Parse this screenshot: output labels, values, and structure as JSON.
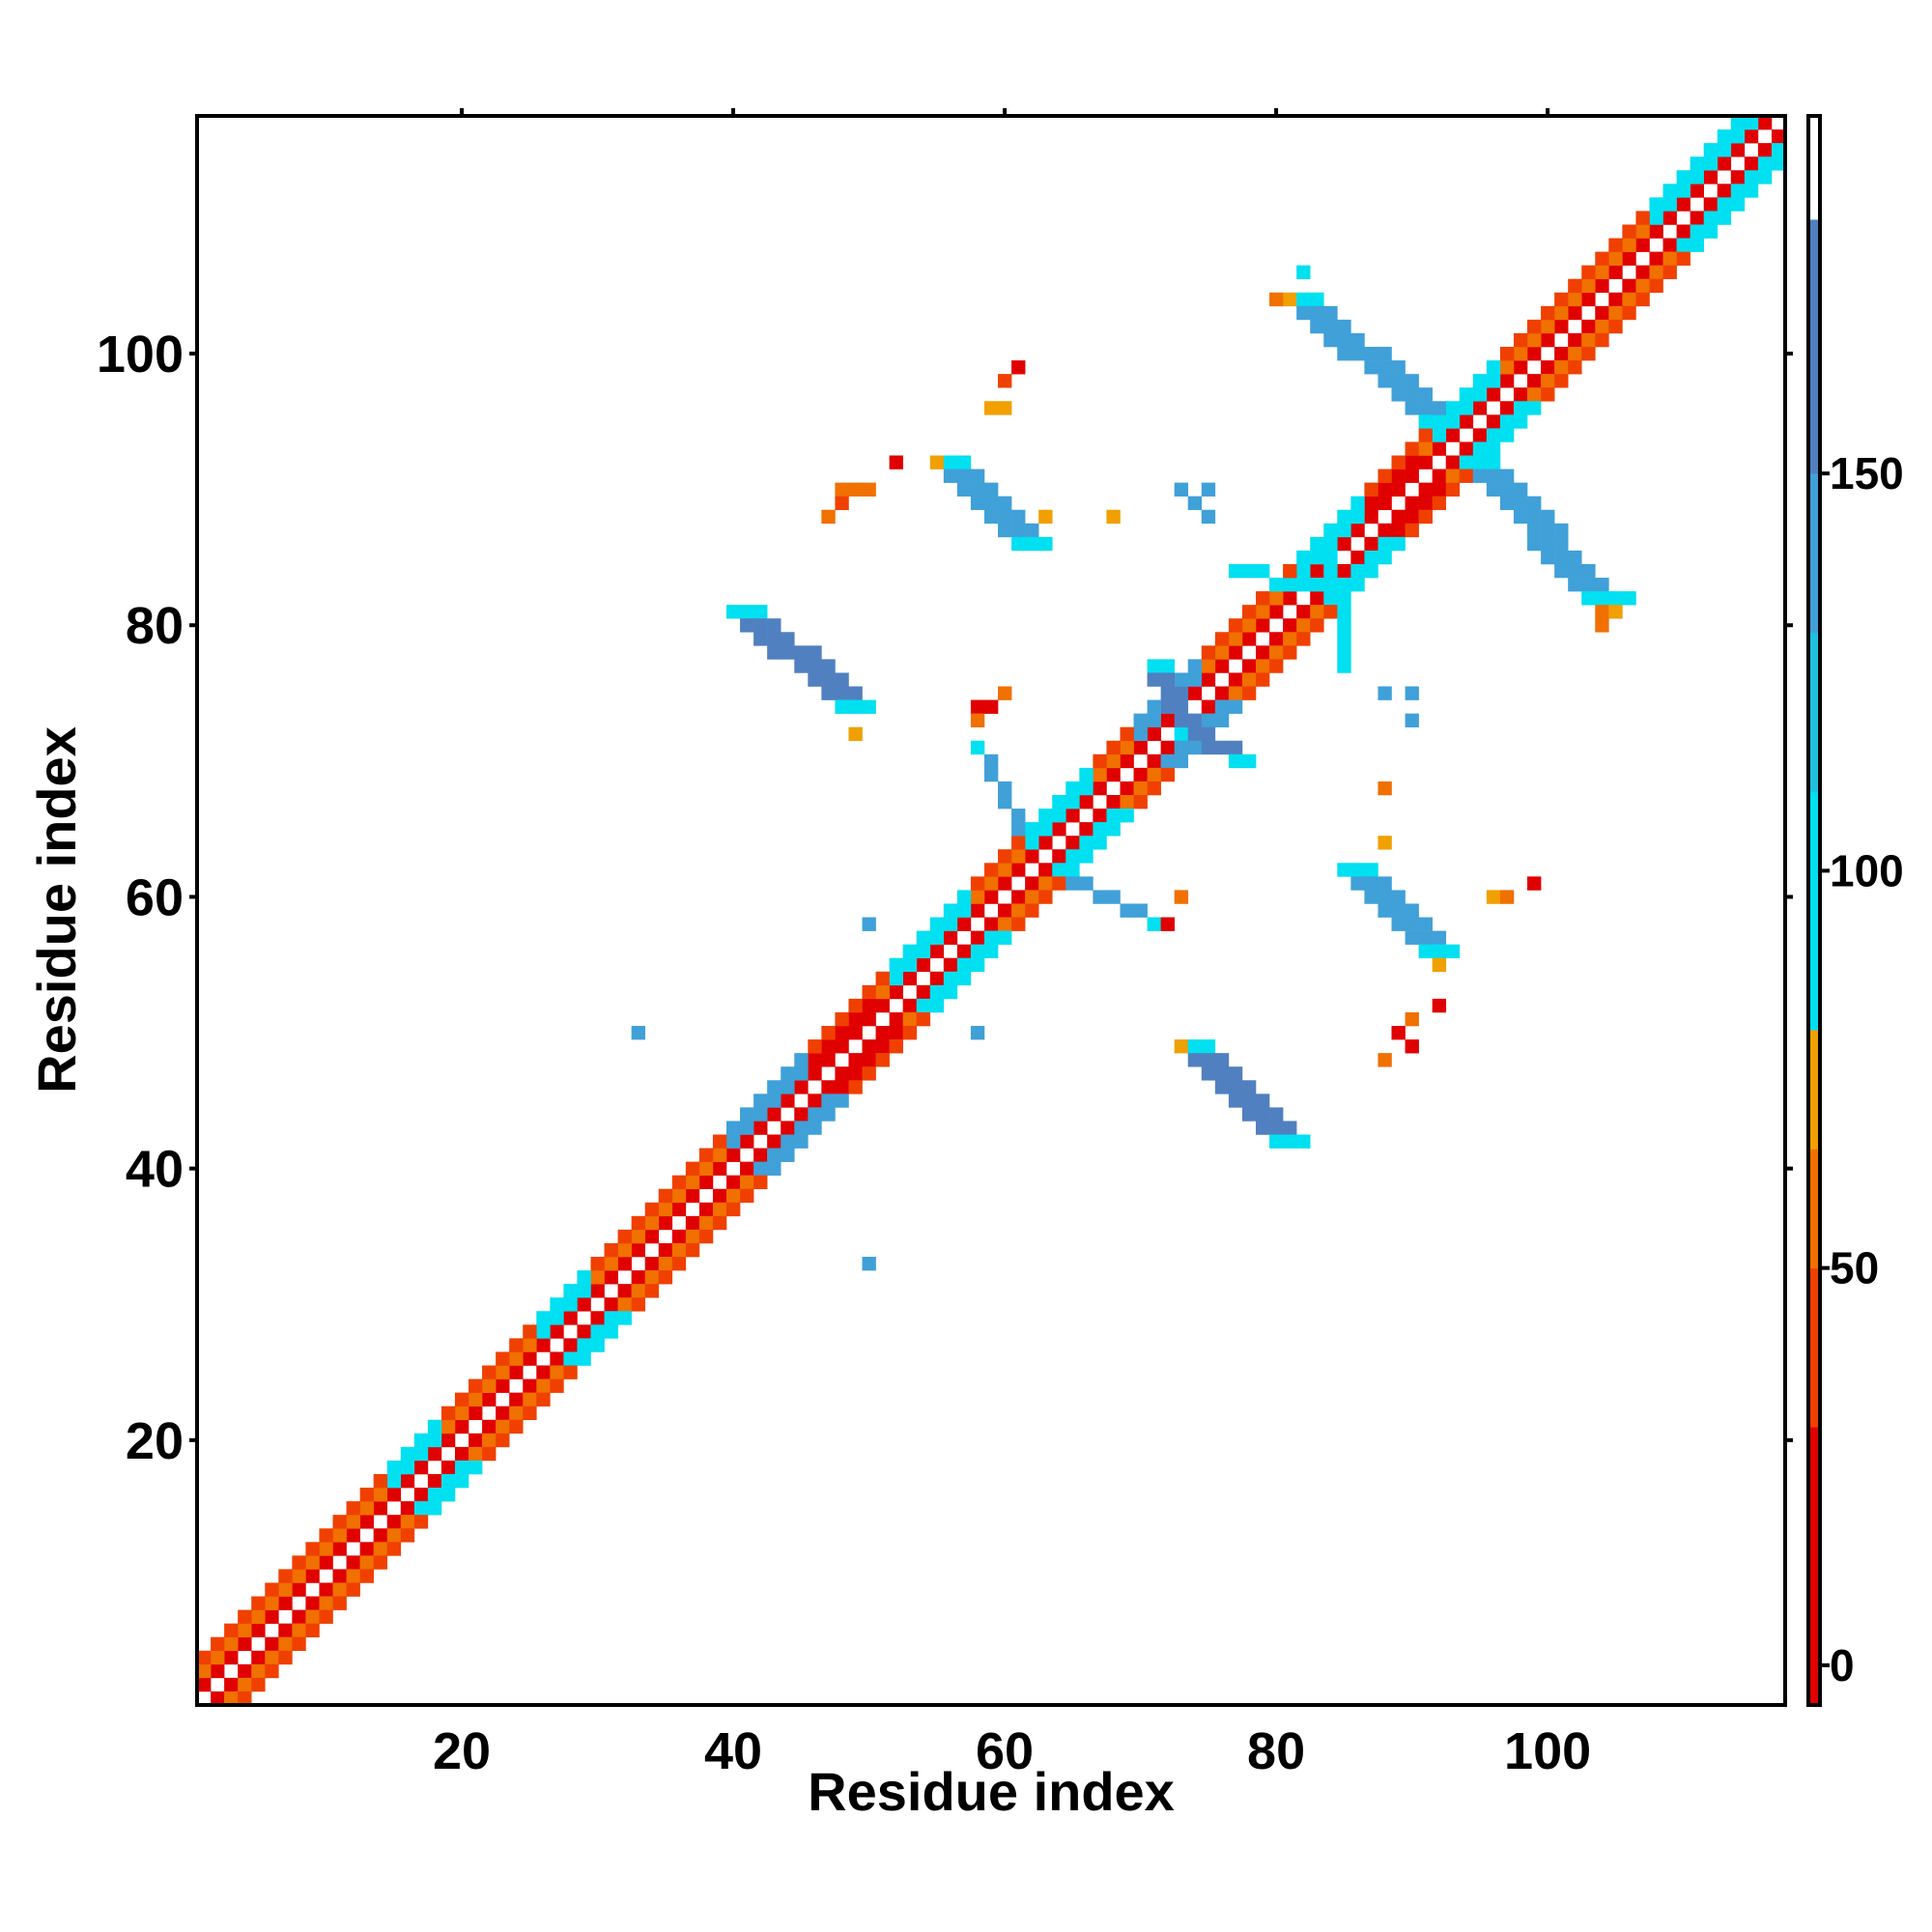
{
  "chart_data": {
    "type": "heatmap",
    "title": "",
    "xlabel": "Residue index",
    "ylabel": "Residue index",
    "xlim": [
      1,
      117
    ],
    "ylim": [
      1,
      117
    ],
    "x_ticks": [
      20,
      40,
      60,
      80,
      100
    ],
    "y_ticks": [
      20,
      40,
      60,
      80,
      100
    ],
    "grid": false,
    "colorbar": {
      "range": [
        -5,
        195
      ],
      "ticks": [
        0,
        50,
        100,
        150
      ],
      "colors": [
        "#e00000",
        "#f04000",
        "#f07000",
        "#f0a000",
        "#00e0f0",
        "#20c0e0",
        "#40a0d8",
        "#5080c0",
        "#ffffff"
      ],
      "bands": [
        [
          -5,
          30
        ],
        [
          30,
          50
        ],
        [
          50,
          65
        ],
        [
          65,
          80
        ],
        [
          80,
          110
        ],
        [
          110,
          130
        ],
        [
          130,
          150
        ],
        [
          150,
          182
        ],
        [
          182,
          195
        ]
      ]
    },
    "palette": {
      "red": "#e00000",
      "red_orange": "#f04000",
      "orange": "#f07000",
      "amber": "#f0a000",
      "cyan": "#00e0f0",
      "sky": "#20c0e0",
      "steel": "#40a0d8",
      "blue": "#5080c0"
    },
    "features": {
      "diagonal": [
        {
          "from": 1,
          "to": 117,
          "offset": 1,
          "category": "red"
        },
        {
          "from": 1,
          "to": 117,
          "offset": 2,
          "category": "orange"
        },
        {
          "from": 1,
          "to": 117,
          "offset": 3,
          "category": "red_orange"
        }
      ],
      "helix_segments": [
        {
          "from": 40,
          "to": 52,
          "offset": 1,
          "category": "red"
        },
        {
          "from": 40,
          "to": 52,
          "offset": 2,
          "category": "red"
        },
        {
          "from": 82,
          "to": 92,
          "offset": 1,
          "category": "red"
        },
        {
          "from": 82,
          "to": 92,
          "offset": 2,
          "category": "red"
        }
      ],
      "near_diagonal_beta": [
        {
          "from": 15,
          "to": 18,
          "category": "cyan"
        },
        {
          "from": 26,
          "to": 29,
          "category": "cyan"
        },
        {
          "from": 40,
          "to": 45,
          "category": "steel"
        },
        {
          "from": 52,
          "to": 57,
          "category": "cyan"
        },
        {
          "from": 62,
          "to": 66,
          "category": "cyan"
        },
        {
          "from": 70,
          "to": 74,
          "category": "steel"
        },
        {
          "from": 82,
          "to": 86,
          "category": "cyan"
        },
        {
          "from": 92,
          "to": 96,
          "category": "cyan"
        },
        {
          "from": 108,
          "to": 117,
          "category": "cyan"
        }
      ],
      "antiparallel_strands": [
        {
          "x1": 41,
          "y1": 81,
          "x2": 49,
          "y2": 74,
          "width": 3,
          "category": "blue"
        },
        {
          "x1": 74,
          "y1": 49,
          "x2": 81,
          "y2": 42,
          "width": 3,
          "category": "blue"
        },
        {
          "x1": 56,
          "y1": 92,
          "x2": 62,
          "y2": 86,
          "width": 3,
          "category": "steel"
        },
        {
          "x1": 86,
          "y1": 62,
          "x2": 92,
          "y2": 56,
          "width": 3,
          "category": "steel"
        },
        {
          "x1": 82,
          "y1": 104,
          "x2": 92,
          "y2": 95,
          "width": 3,
          "category": "steel"
        },
        {
          "x1": 95,
          "y1": 92,
          "x2": 104,
          "y2": 82,
          "width": 3,
          "category": "steel"
        },
        {
          "x1": 58,
          "y1": 71,
          "x2": 62,
          "y2": 64,
          "width": 1,
          "category": "steel"
        },
        {
          "x1": 64,
          "y1": 62,
          "x2": 71,
          "y2": 58,
          "width": 1,
          "category": "steel"
        },
        {
          "x1": 71,
          "y1": 77,
          "x2": 74,
          "y2": 72,
          "width": 2,
          "category": "blue"
        },
        {
          "x1": 73,
          "y1": 72,
          "x2": 77,
          "y2": 70,
          "width": 2,
          "category": "blue"
        },
        {
          "x1": 77,
          "y1": 84,
          "x2": 85,
          "y2": 82,
          "width": 1,
          "category": "cyan"
        },
        {
          "x1": 84,
          "y1": 85,
          "x2": 85,
          "y2": 77,
          "width": 1,
          "category": "cyan"
        }
      ],
      "scattered": [
        {
          "x": 61,
          "y": 99,
          "category": "red"
        },
        {
          "x": 60,
          "y": 98,
          "category": "red_orange"
        },
        {
          "x": 59,
          "y": 96,
          "category": "amber"
        },
        {
          "x": 60,
          "y": 96,
          "category": "amber"
        },
        {
          "x": 52,
          "y": 92,
          "category": "red"
        },
        {
          "x": 48,
          "y": 90,
          "category": "orange"
        },
        {
          "x": 49,
          "y": 90,
          "category": "orange"
        },
        {
          "x": 50,
          "y": 90,
          "category": "orange"
        },
        {
          "x": 48,
          "y": 89,
          "category": "red_orange"
        },
        {
          "x": 47,
          "y": 88,
          "category": "orange"
        },
        {
          "x": 55,
          "y": 92,
          "category": "amber"
        },
        {
          "x": 63,
          "y": 88,
          "category": "amber"
        },
        {
          "x": 68,
          "y": 88,
          "category": "amber"
        },
        {
          "x": 73,
          "y": 90,
          "category": "steel"
        },
        {
          "x": 75,
          "y": 90,
          "category": "steel"
        },
        {
          "x": 74,
          "y": 89,
          "category": "steel"
        },
        {
          "x": 75,
          "y": 88,
          "category": "steel"
        },
        {
          "x": 49,
          "y": 72,
          "category": "amber"
        },
        {
          "x": 58,
          "y": 74,
          "category": "red"
        },
        {
          "x": 59,
          "y": 74,
          "category": "red"
        },
        {
          "x": 58,
          "y": 73,
          "category": "orange"
        },
        {
          "x": 60,
          "y": 75,
          "category": "orange"
        },
        {
          "x": 50,
          "y": 58,
          "category": "steel"
        },
        {
          "x": 33,
          "y": 50,
          "category": "steel"
        },
        {
          "x": 58,
          "y": 50,
          "category": "steel"
        },
        {
          "x": 50,
          "y": 33,
          "category": "steel"
        },
        {
          "x": 72,
          "y": 58,
          "category": "red"
        },
        {
          "x": 73,
          "y": 60,
          "category": "orange"
        },
        {
          "x": 73,
          "y": 49,
          "category": "amber"
        },
        {
          "x": 88,
          "y": 75,
          "category": "steel"
        },
        {
          "x": 90,
          "y": 75,
          "category": "steel"
        },
        {
          "x": 90,
          "y": 73,
          "category": "steel"
        },
        {
          "x": 88,
          "y": 68,
          "category": "orange"
        },
        {
          "x": 88,
          "y": 64,
          "category": "amber"
        },
        {
          "x": 96,
          "y": 60,
          "category": "amber"
        },
        {
          "x": 97,
          "y": 60,
          "category": "orange"
        },
        {
          "x": 99,
          "y": 61,
          "category": "red"
        },
        {
          "x": 92,
          "y": 52,
          "category": "red"
        },
        {
          "x": 89,
          "y": 50,
          "category": "red"
        },
        {
          "x": 90,
          "y": 51,
          "category": "orange"
        },
        {
          "x": 90,
          "y": 49,
          "category": "red"
        },
        {
          "x": 88,
          "y": 48,
          "category": "orange"
        },
        {
          "x": 92,
          "y": 55,
          "category": "amber"
        },
        {
          "x": 82,
          "y": 106,
          "category": "cyan"
        },
        {
          "x": 80,
          "y": 104,
          "category": "orange"
        },
        {
          "x": 81,
          "y": 104,
          "category": "amber"
        },
        {
          "x": 104,
          "y": 81,
          "category": "orange"
        },
        {
          "x": 105,
          "y": 81,
          "category": "amber"
        },
        {
          "x": 104,
          "y": 80,
          "category": "orange"
        },
        {
          "x": 106,
          "y": 82,
          "category": "cyan"
        }
      ]
    }
  }
}
